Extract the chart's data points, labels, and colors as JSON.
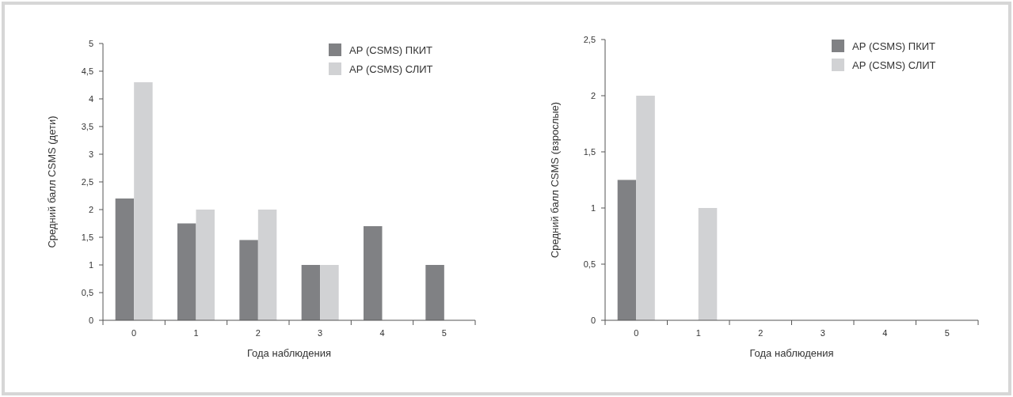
{
  "chart_data": [
    {
      "type": "bar",
      "ylabel": "Средний балл CSMS (дети)",
      "xlabel": "Года наблюдения",
      "categories": [
        "0",
        "1",
        "2",
        "3",
        "4",
        "5"
      ],
      "ylim": [
        0,
        5
      ],
      "yticks": [
        0,
        {
          "value": 0.5,
          "label": "0,5"
        },
        1,
        {
          "value": 1.5,
          "label": "1,5"
        },
        2,
        {
          "value": 2.5,
          "label": "2,5"
        },
        3,
        {
          "value": 3.5,
          "label": "3,5"
        },
        4,
        {
          "value": 4.5,
          "label": "4,5"
        },
        5
      ],
      "legend": "top right",
      "series": [
        {
          "name": "АР (CSMS) ПКИТ",
          "color": "#808184",
          "values": [
            2.2,
            1.75,
            1.45,
            1,
            1.7,
            1
          ]
        },
        {
          "name": "АР (CSMS) СЛИТ",
          "color": "#d1d2d4",
          "values": [
            4.3,
            2,
            2,
            1,
            null,
            null
          ]
        }
      ]
    },
    {
      "type": "bar",
      "ylabel": "Средний балл CSMS (взрослые)",
      "xlabel": "Года наблюдения",
      "categories": [
        "0",
        "1",
        "2",
        "3",
        "4",
        "5"
      ],
      "ylim": [
        0,
        2.5
      ],
      "yticks": [
        0,
        {
          "value": 0.5,
          "label": "0,5"
        },
        1,
        {
          "value": 1.5,
          "label": "1,5"
        },
        2,
        {
          "value": 2.5,
          "label": "2,5"
        }
      ],
      "legend": "top right",
      "series": [
        {
          "name": "АР (CSMS) ПКИТ",
          "color": "#808184",
          "values": [
            1.25,
            null,
            null,
            null,
            null,
            null
          ]
        },
        {
          "name": "АР (CSMS) СЛИТ",
          "color": "#d1d2d4",
          "values": [
            2,
            1,
            null,
            null,
            null,
            null
          ]
        }
      ]
    }
  ]
}
